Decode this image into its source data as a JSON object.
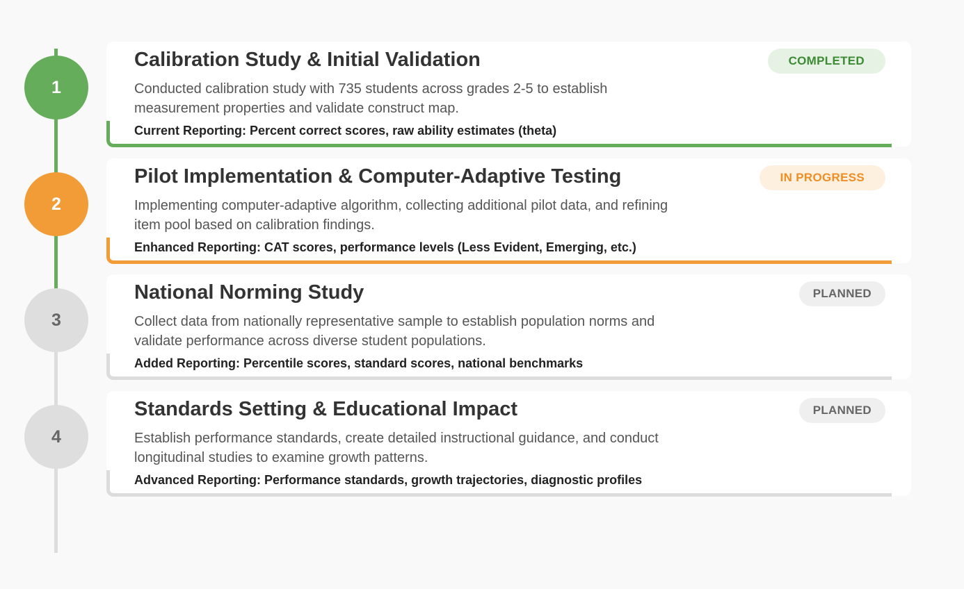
{
  "colors": {
    "completed": "#66ad5b",
    "in_progress": "#f29c38",
    "planned": "#dedede",
    "background": "#f9f9f9"
  },
  "phases": [
    {
      "number": "1",
      "status": "COMPLETED",
      "title": "Calibration Study & Initial Validation",
      "description": "Conducted calibration study with 735 students across grades 2-5 to establish measurement properties and validate construct map.",
      "reporting": "Current Reporting: Percent correct scores, raw ability estimates (theta)"
    },
    {
      "number": "2",
      "status": "IN PROGRESS",
      "title": "Pilot Implementation & Computer-Adaptive Testing",
      "description": "Implementing computer-adaptive algorithm, collecting additional pilot data, and refining item pool based on calibration findings.",
      "reporting": "Enhanced Reporting: CAT scores, performance levels (Less Evident, Emerging, etc.)"
    },
    {
      "number": "3",
      "status": "PLANNED",
      "title": "National Norming Study",
      "description": "Collect data from nationally representative sample to establish population norms and validate performance across diverse student populations.",
      "reporting": "Added Reporting: Percentile scores, standard scores, national benchmarks"
    },
    {
      "number": "4",
      "status": "PLANNED",
      "title": "Standards Setting & Educational Impact",
      "description": "Establish performance standards, create detailed instructional guidance, and conduct longitudinal studies to examine growth patterns.",
      "reporting": "Advanced Reporting: Performance standards, growth trajectories, diagnostic profiles"
    }
  ]
}
